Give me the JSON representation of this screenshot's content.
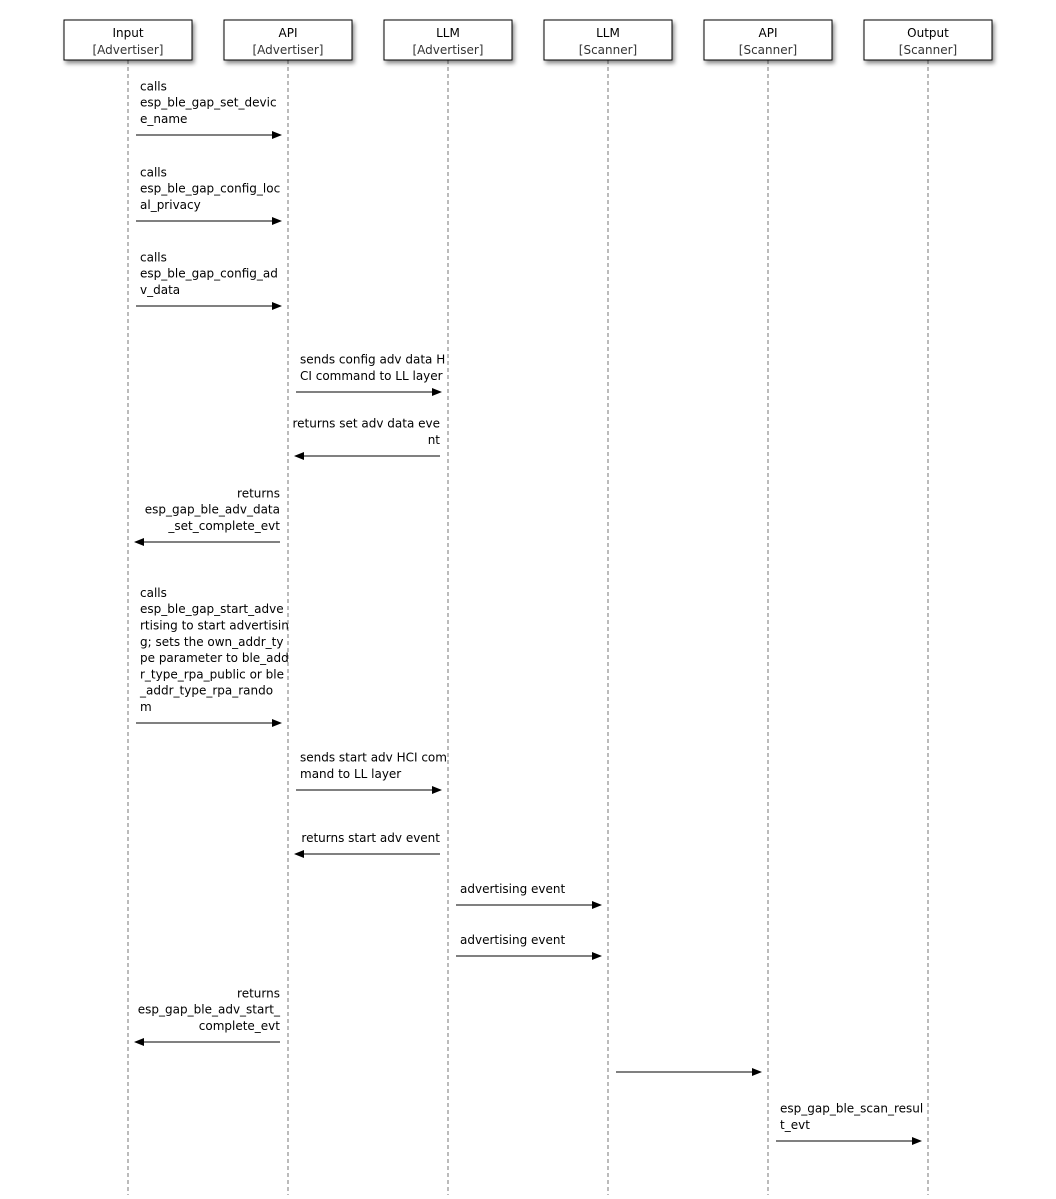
{
  "participants": [
    {
      "name": "Input",
      "role": "[Advertiser]"
    },
    {
      "name": "API",
      "role": "[Advertiser]"
    },
    {
      "name": "LLM",
      "role": "[Advertiser]"
    },
    {
      "name": "LLM",
      "role": "[Scanner]"
    },
    {
      "name": "API",
      "role": "[Scanner]"
    },
    {
      "name": "Output",
      "role": "[Scanner]"
    }
  ],
  "messages": [
    {
      "from": 0,
      "to": 1,
      "lines": [
        "calls",
        "esp_ble_gap_set_devic",
        "e_name"
      ]
    },
    {
      "from": 0,
      "to": 1,
      "lines": [
        "calls",
        "esp_ble_gap_config_loc",
        "al_privacy"
      ]
    },
    {
      "from": 0,
      "to": 1,
      "lines": [
        "calls",
        "esp_ble_gap_config_ad",
        "v_data"
      ]
    },
    {
      "from": 1,
      "to": 2,
      "lines": [
        "sends config adv data H",
        "CI command to LL layer"
      ]
    },
    {
      "from": 2,
      "to": 1,
      "lines": [
        "returns set adv data eve",
        "nt"
      ]
    },
    {
      "from": 1,
      "to": 0,
      "lines": [
        "returns",
        "esp_gap_ble_adv_data",
        "_set_complete_evt"
      ]
    },
    {
      "from": 0,
      "to": 1,
      "lines": [
        "calls",
        "esp_ble_gap_start_adve",
        "rtising to start advertisin",
        "g; sets the own_addr_ty",
        "pe parameter to ble_add",
        "r_type_rpa_public or ble",
        "_addr_type_rpa_rando",
        "m"
      ]
    },
    {
      "from": 1,
      "to": 2,
      "lines": [
        "sends start adv HCI com",
        "mand to LL layer"
      ]
    },
    {
      "from": 2,
      "to": 1,
      "lines": [
        "returns start adv event"
      ]
    },
    {
      "from": 2,
      "to": 3,
      "lines": [
        "advertising event"
      ]
    },
    {
      "from": 2,
      "to": 3,
      "lines": [
        "advertising event"
      ]
    },
    {
      "from": 1,
      "to": 0,
      "lines": [
        "returns",
        "esp_gap_ble_adv_start_",
        "complete_evt"
      ]
    },
    {
      "from": 3,
      "to": 4,
      "lines": []
    },
    {
      "from": 4,
      "to": 5,
      "lines": [
        "esp_gap_ble_scan_resul",
        "t_evt"
      ]
    }
  ]
}
